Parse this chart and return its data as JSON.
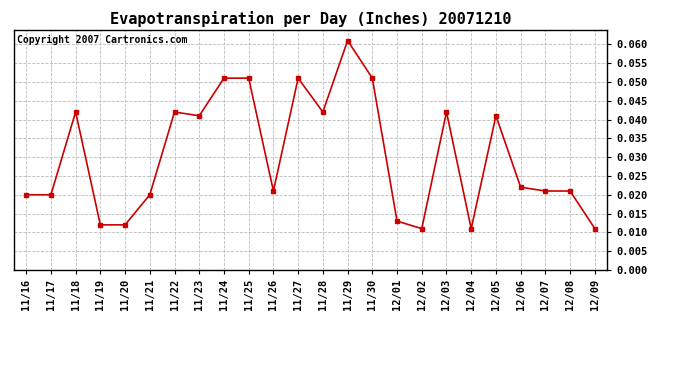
{
  "title": "Evapotranspiration per Day (Inches) 20071210",
  "copyright": "Copyright 2007 Cartronics.com",
  "labels": [
    "11/16",
    "11/17",
    "11/18",
    "11/19",
    "11/20",
    "11/21",
    "11/22",
    "11/23",
    "11/24",
    "11/25",
    "11/26",
    "11/27",
    "11/28",
    "11/29",
    "11/30",
    "12/01",
    "12/02",
    "12/03",
    "12/04",
    "12/05",
    "12/06",
    "12/07",
    "12/08",
    "12/09"
  ],
  "values": [
    0.02,
    0.02,
    0.042,
    0.012,
    0.012,
    0.02,
    0.042,
    0.041,
    0.051,
    0.051,
    0.021,
    0.051,
    0.042,
    0.061,
    0.051,
    0.013,
    0.011,
    0.042,
    0.011,
    0.041,
    0.022,
    0.021,
    0.021,
    0.011
  ],
  "line_color": "#cc0000",
  "marker": "s",
  "ylim": [
    0.0,
    0.0638
  ],
  "yticks": [
    0.0,
    0.005,
    0.01,
    0.015,
    0.02,
    0.025,
    0.03,
    0.035,
    0.04,
    0.045,
    0.05,
    0.055,
    0.06
  ],
  "background_color": "#ffffff",
  "grid_color": "#bbbbbb",
  "title_fontsize": 11,
  "copyright_fontsize": 7,
  "tick_fontsize": 7.5
}
